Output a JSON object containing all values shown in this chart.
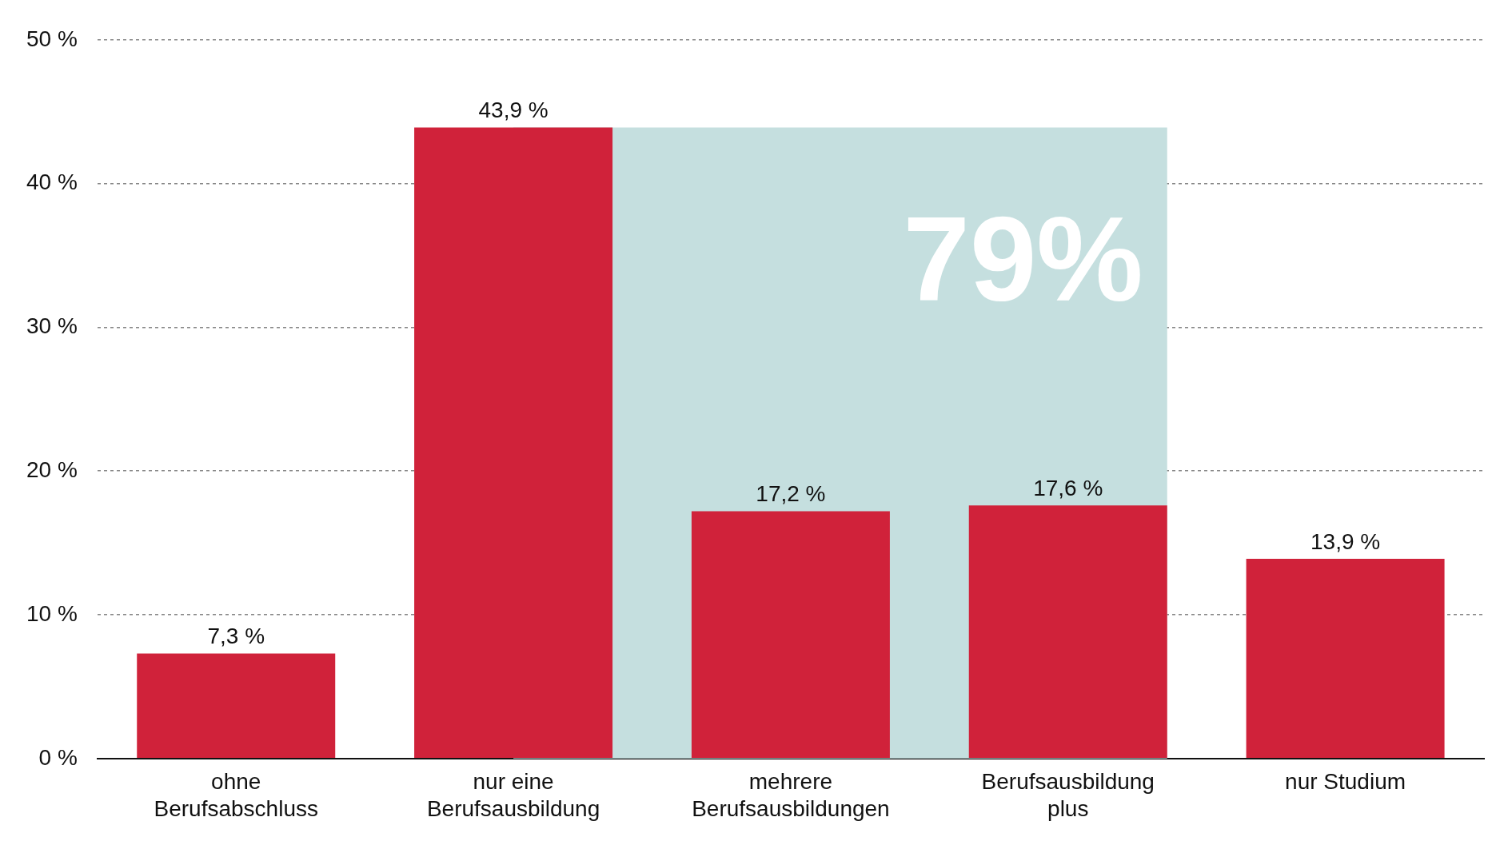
{
  "chart_data": {
    "type": "bar",
    "categories": [
      "ohne Berufsabschluss",
      "nur eine Berufsausbildung",
      "mehrere Berufsausbildungen",
      "Berufsausbildung plus",
      "nur Studium"
    ],
    "values": [
      7.3,
      43.9,
      17.2,
      17.6,
      13.9
    ],
    "value_labels": [
      "7,3 %",
      "43,9 %",
      "17,2 %",
      "17,6 %",
      "13,9 %"
    ],
    "color": "#d0223a",
    "ylim": [
      0,
      50
    ],
    "yticks": [
      {
        "value": 0,
        "label": "0 %"
      },
      {
        "value": 10,
        "label": "10 %"
      },
      {
        "value": 20,
        "label": "20 %"
      },
      {
        "value": 30,
        "label": "30 %"
      },
      {
        "value": 40,
        "label": "40 %"
      },
      {
        "value": 50,
        "label": "50 %"
      }
    ],
    "grid": "y",
    "bands": [
      {
        "axis": "x",
        "from": "nur eine Berufsausbildung",
        "to": "Berufsausbildung plus",
        "label": "79%",
        "color": "#c5dfdf"
      }
    ]
  }
}
